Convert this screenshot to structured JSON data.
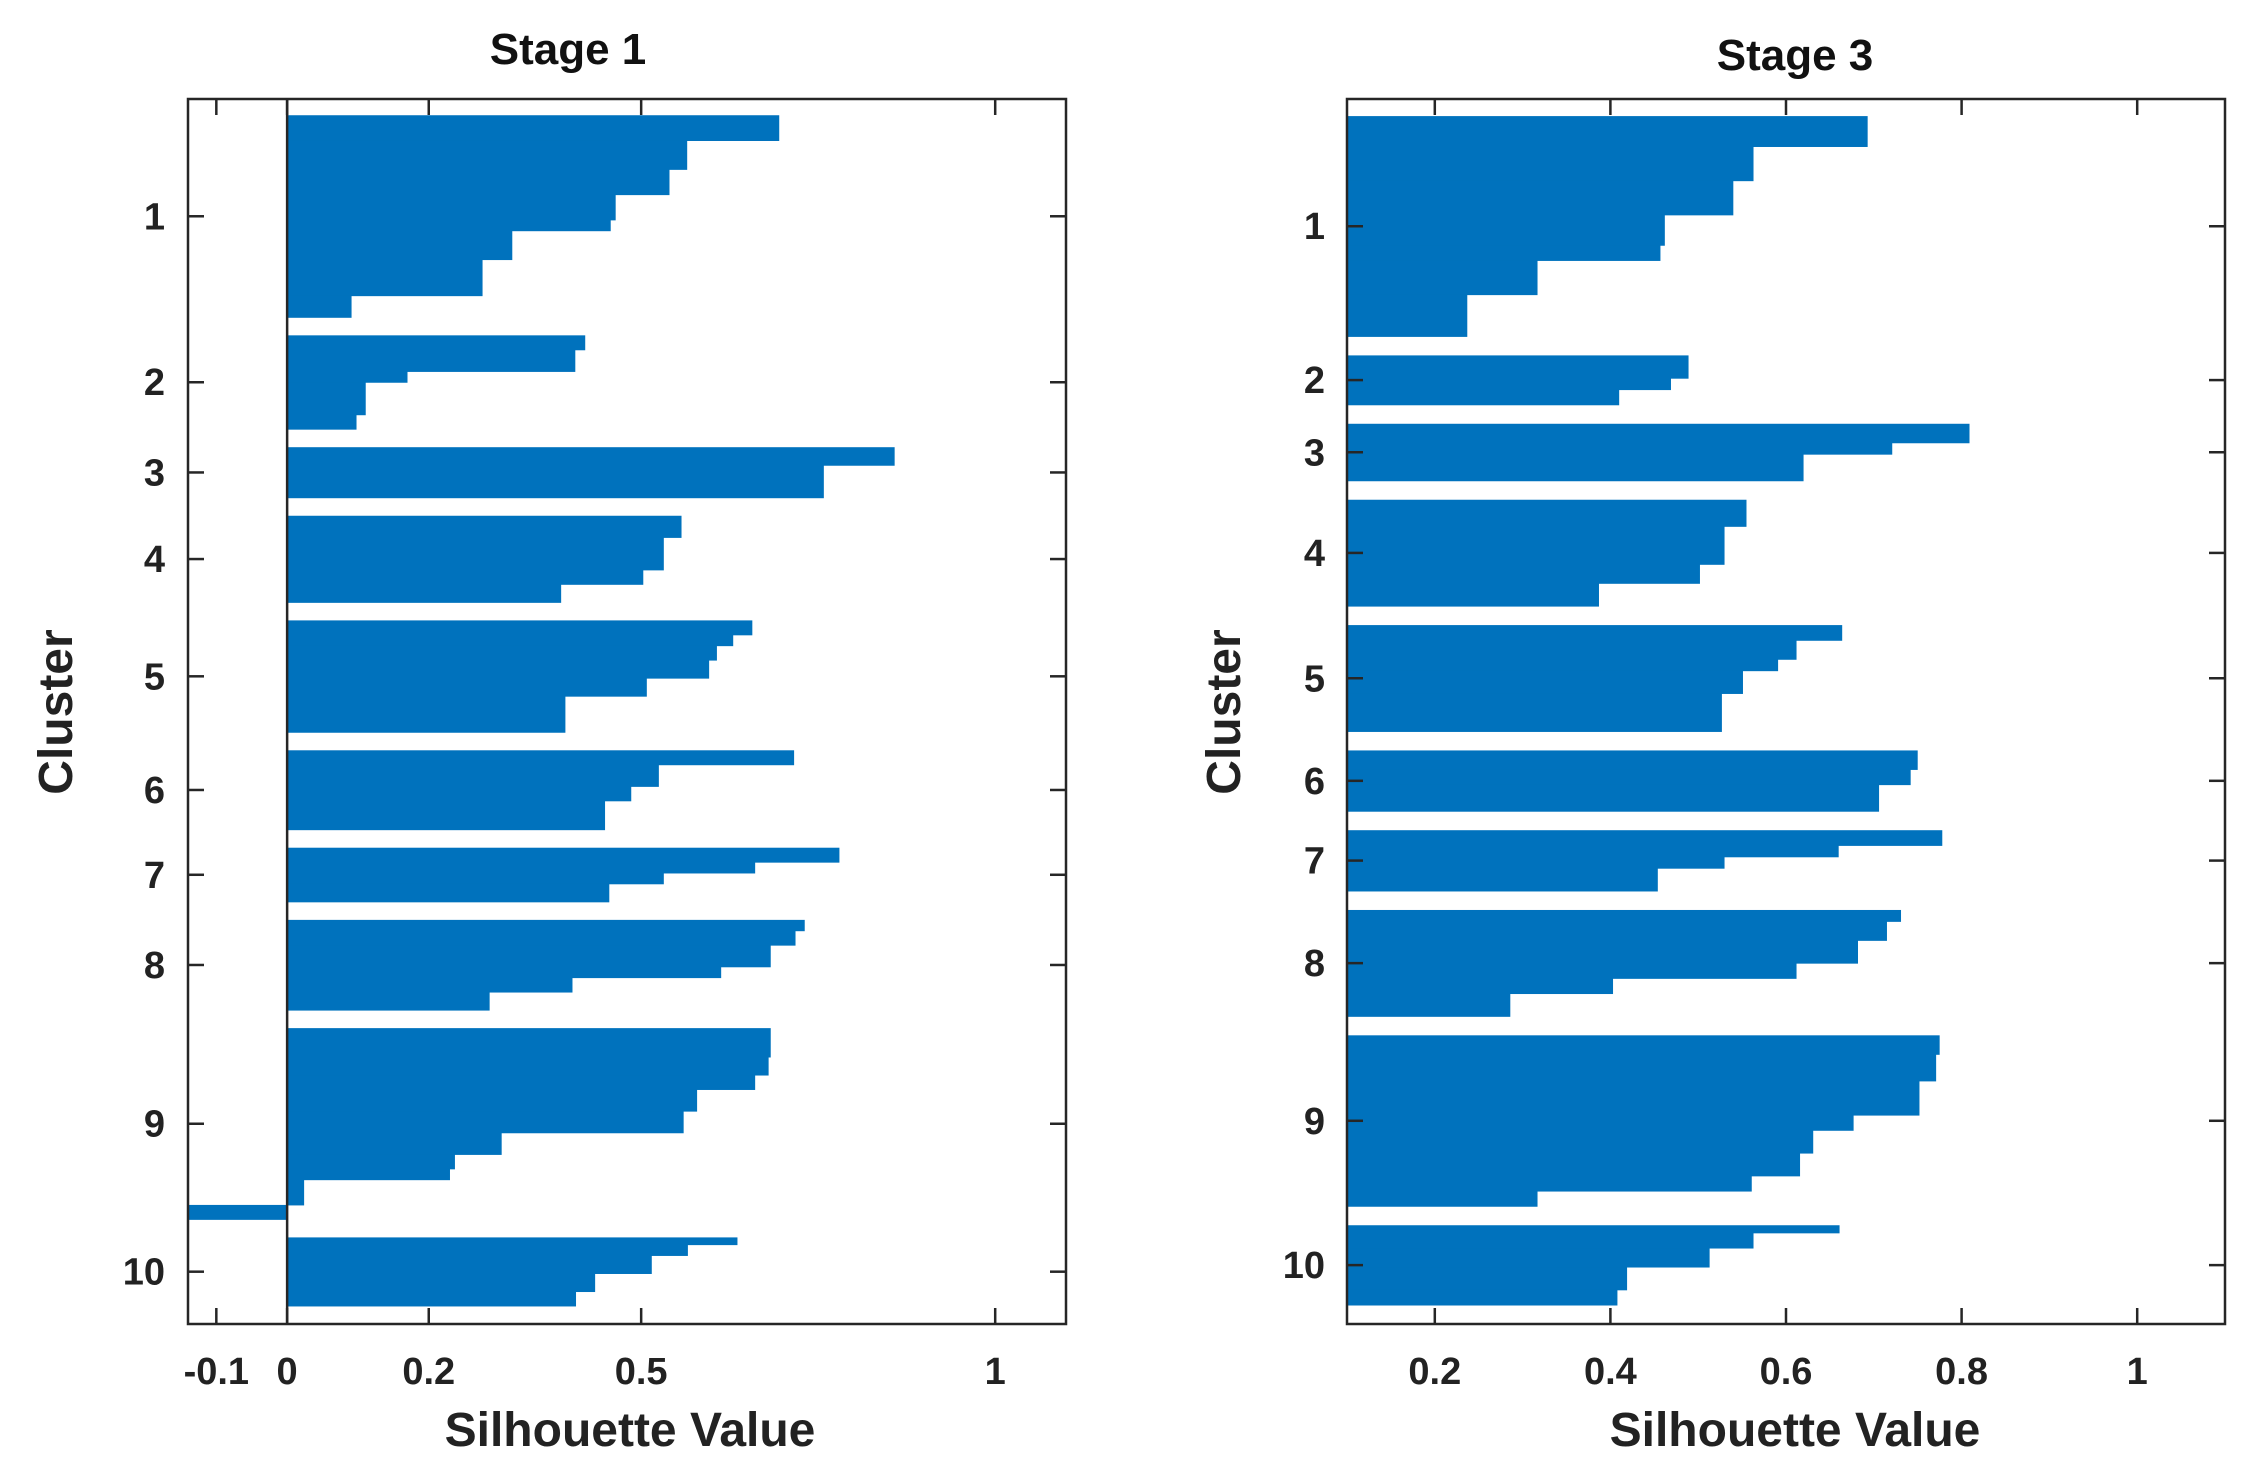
{
  "chart_data": [
    {
      "type": "bar",
      "orientation": "horizontal",
      "title": "Stage 1",
      "xlabel": "Silhouette Value",
      "ylabel": "Cluster",
      "xlim": [
        -0.14,
        1.1
      ],
      "xticks": [
        -0.1,
        0,
        0.2,
        0.5,
        1
      ],
      "xtick_labels": [
        "-0.1",
        "0",
        "0.2",
        "0.5",
        "1"
      ],
      "ytick_labels": [
        "1",
        "2",
        "3",
        "4",
        "5",
        "6",
        "7",
        "8",
        "9",
        "10"
      ],
      "grid": false,
      "bar_color": "#0072BD",
      "clusters": [
        {
          "label": "1",
          "segments": [
            {
              "value": 0.695,
              "n": 7
            },
            {
              "value": 0.565,
              "n": 8
            },
            {
              "value": 0.54,
              "n": 7
            },
            {
              "value": 0.464,
              "n": 7
            },
            {
              "value": 0.457,
              "n": 3
            },
            {
              "value": 0.318,
              "n": 8
            },
            {
              "value": 0.276,
              "n": 10
            },
            {
              "value": 0.091,
              "n": 6
            }
          ]
        },
        {
          "label": "2",
          "segments": [
            {
              "value": 0.421,
              "n": 4
            },
            {
              "value": 0.407,
              "n": 6
            },
            {
              "value": 0.17,
              "n": 3
            },
            {
              "value": 0.111,
              "n": 9
            },
            {
              "value": 0.098,
              "n": 4
            }
          ]
        },
        {
          "label": "3",
          "segments": [
            {
              "value": 0.858,
              "n": 5
            },
            {
              "value": 0.758,
              "n": 9
            }
          ]
        },
        {
          "label": "4",
          "segments": [
            {
              "value": 0.557,
              "n": 6
            },
            {
              "value": 0.532,
              "n": 9
            },
            {
              "value": 0.503,
              "n": 4
            },
            {
              "value": 0.387,
              "n": 5
            }
          ]
        },
        {
          "label": "5",
          "segments": [
            {
              "value": 0.657,
              "n": 4
            },
            {
              "value": 0.63,
              "n": 3
            },
            {
              "value": 0.607,
              "n": 4
            },
            {
              "value": 0.596,
              "n": 5
            },
            {
              "value": 0.508,
              "n": 5
            },
            {
              "value": 0.393,
              "n": 10
            }
          ]
        },
        {
          "label": "6",
          "segments": [
            {
              "value": 0.716,
              "n": 4
            },
            {
              "value": 0.525,
              "n": 6
            },
            {
              "value": 0.486,
              "n": 4
            },
            {
              "value": 0.449,
              "n": 8
            }
          ]
        },
        {
          "label": "7",
          "segments": [
            {
              "value": 0.78,
              "n": 4
            },
            {
              "value": 0.661,
              "n": 3
            },
            {
              "value": 0.532,
              "n": 3
            },
            {
              "value": 0.455,
              "n": 5
            }
          ]
        },
        {
          "label": "8",
          "segments": [
            {
              "value": 0.731,
              "n": 3
            },
            {
              "value": 0.718,
              "n": 4
            },
            {
              "value": 0.683,
              "n": 6
            },
            {
              "value": 0.613,
              "n": 3
            },
            {
              "value": 0.403,
              "n": 4
            },
            {
              "value": 0.286,
              "n": 5
            }
          ]
        },
        {
          "label": "9",
          "segments": [
            {
              "value": 0.683,
              "n": 8
            },
            {
              "value": 0.68,
              "n": 5
            },
            {
              "value": 0.661,
              "n": 4
            },
            {
              "value": 0.579,
              "n": 6
            },
            {
              "value": 0.56,
              "n": 6
            },
            {
              "value": 0.303,
              "n": 6
            },
            {
              "value": 0.237,
              "n": 4
            },
            {
              "value": 0.23,
              "n": 3
            },
            {
              "value": 0.024,
              "n": 7
            },
            {
              "value": -0.14,
              "n": 4
            }
          ]
        },
        {
          "label": "10",
          "segments": [
            {
              "value": 0.636,
              "n": 2
            },
            {
              "value": 0.566,
              "n": 3
            },
            {
              "value": 0.515,
              "n": 5
            },
            {
              "value": 0.435,
              "n": 5
            },
            {
              "value": 0.408,
              "n": 4
            }
          ]
        }
      ]
    },
    {
      "type": "bar",
      "orientation": "horizontal",
      "title": "Stage 3",
      "xlabel": "Silhouette Value",
      "ylabel": "Cluster",
      "xlim": [
        0.1,
        1.1
      ],
      "xticks": [
        0.2,
        0.4,
        0.6,
        0.8,
        1
      ],
      "xtick_labels": [
        "0.2",
        "0.4",
        "0.6",
        "0.8",
        "1"
      ],
      "ytick_labels": [
        "1",
        "2",
        "3",
        "4",
        "5",
        "6",
        "7",
        "8",
        "9",
        "10"
      ],
      "grid": false,
      "bar_color": "#0072BD",
      "clusters": [
        {
          "label": "1",
          "segments": [
            {
              "value": 0.693,
              "n": 8
            },
            {
              "value": 0.563,
              "n": 9
            },
            {
              "value": 0.54,
              "n": 9
            },
            {
              "value": 0.462,
              "n": 8
            },
            {
              "value": 0.457,
              "n": 4
            },
            {
              "value": 0.317,
              "n": 9
            },
            {
              "value": 0.237,
              "n": 11
            }
          ]
        },
        {
          "label": "2",
          "segments": [
            {
              "value": 0.489,
              "n": 6
            },
            {
              "value": 0.469,
              "n": 3
            },
            {
              "value": 0.41,
              "n": 4
            }
          ]
        },
        {
          "label": "3",
          "segments": [
            {
              "value": 0.809,
              "n": 5
            },
            {
              "value": 0.721,
              "n": 3
            },
            {
              "value": 0.62,
              "n": 7
            }
          ]
        },
        {
          "label": "4",
          "segments": [
            {
              "value": 0.555,
              "n": 7
            },
            {
              "value": 0.53,
              "n": 10
            },
            {
              "value": 0.502,
              "n": 5
            },
            {
              "value": 0.387,
              "n": 6
            }
          ]
        },
        {
          "label": "5",
          "segments": [
            {
              "value": 0.664,
              "n": 4
            },
            {
              "value": 0.612,
              "n": 5
            },
            {
              "value": 0.591,
              "n": 3
            },
            {
              "value": 0.551,
              "n": 6
            },
            {
              "value": 0.527,
              "n": 10
            }
          ]
        },
        {
          "label": "6",
          "segments": [
            {
              "value": 0.75,
              "n": 5
            },
            {
              "value": 0.742,
              "n": 4
            },
            {
              "value": 0.706,
              "n": 7
            }
          ]
        },
        {
          "label": "7",
          "segments": [
            {
              "value": 0.778,
              "n": 4
            },
            {
              "value": 0.66,
              "n": 3
            },
            {
              "value": 0.53,
              "n": 3
            },
            {
              "value": 0.454,
              "n": 6
            }
          ]
        },
        {
          "label": "8",
          "segments": [
            {
              "value": 0.731,
              "n": 3
            },
            {
              "value": 0.715,
              "n": 5
            },
            {
              "value": 0.682,
              "n": 6
            },
            {
              "value": 0.612,
              "n": 4
            },
            {
              "value": 0.403,
              "n": 4
            },
            {
              "value": 0.286,
              "n": 6
            }
          ]
        },
        {
          "label": "9",
          "segments": [
            {
              "value": 0.775,
              "n": 5
            },
            {
              "value": 0.771,
              "n": 7
            },
            {
              "value": 0.752,
              "n": 9
            },
            {
              "value": 0.677,
              "n": 4
            },
            {
              "value": 0.631,
              "n": 6
            },
            {
              "value": 0.616,
              "n": 6
            },
            {
              "value": 0.561,
              "n": 4
            },
            {
              "value": 0.317,
              "n": 4
            }
          ]
        },
        {
          "label": "10",
          "segments": [
            {
              "value": 0.661,
              "n": 2
            },
            {
              "value": 0.563,
              "n": 4
            },
            {
              "value": 0.513,
              "n": 5
            },
            {
              "value": 0.419,
              "n": 6
            },
            {
              "value": 0.408,
              "n": 4
            }
          ]
        }
      ]
    }
  ]
}
